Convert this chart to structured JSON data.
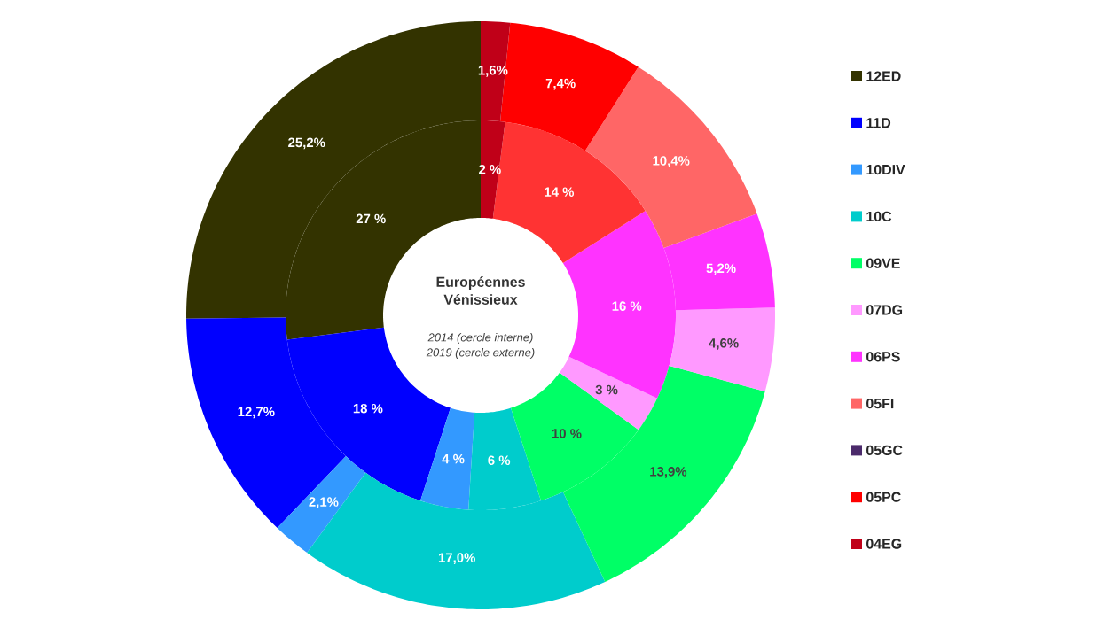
{
  "chart_data": {
    "type": "donut",
    "title": "Européennes Vénissieux",
    "annotations": [
      "2014 (cercle interne)",
      "2019 (cercle externe)"
    ],
    "categories": [
      "12ED",
      "11D",
      "10DIV",
      "10C",
      "09VE",
      "07DG",
      "06PS",
      "05FI",
      "05GC",
      "05PC",
      "04EG"
    ],
    "colors": [
      "#333300",
      "#0000ff",
      "#3399ff",
      "#00cccc",
      "#00ff66",
      "#ff99ff",
      "#ff33ff",
      "#ff6666",
      "#4b2a6b",
      "#ff0000",
      "#c00018"
    ],
    "series": [
      {
        "values": [
          27,
          18,
          4,
          6,
          10,
          3,
          16,
          0,
          0,
          14,
          2
        ],
        "value_labels": [
          "27 %",
          "18 %",
          "4 %",
          "6 %",
          "10 %",
          "3 %",
          "16 %",
          null,
          null,
          "14 %",
          "2 %"
        ],
        "colors": [
          "#333300",
          "#0000ff",
          "#3399ff",
          "#00cccc",
          "#00ff66",
          "#ff99ff",
          "#ff33ff",
          "#ff6666",
          "#4b2a6b",
          "#ff3333",
          "#c00018"
        ]
      },
      {
        "values": [
          25.2,
          12.7,
          2.1,
          17.0,
          13.9,
          4.6,
          5.2,
          10.4,
          0,
          7.4,
          1.6
        ],
        "value_labels": [
          "25,2%",
          "12,7%",
          "2,1%",
          "17,0%",
          "13,9%",
          "4,6%",
          "5,2%",
          "10,4%",
          null,
          "7,4%",
          "1,6%"
        ]
      }
    ],
    "legend": "right"
  }
}
